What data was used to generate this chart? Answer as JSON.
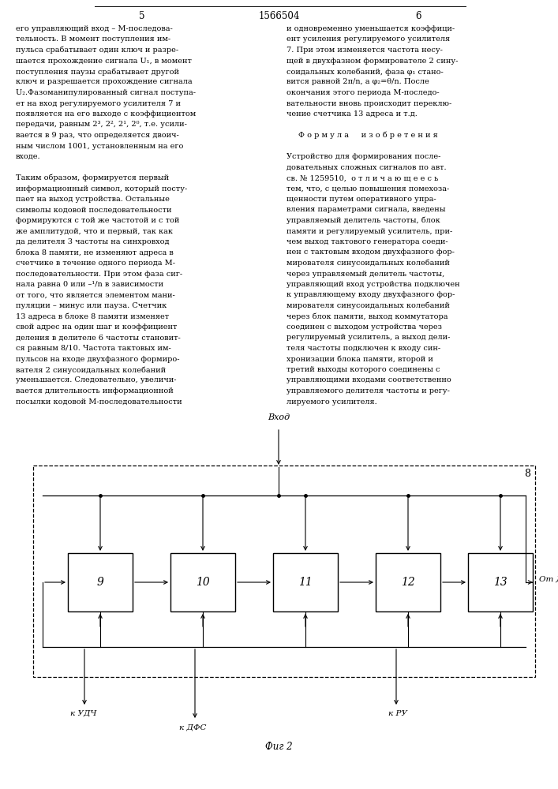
{
  "page_width": 7.07,
  "page_height": 10.0,
  "bg_color": "#ffffff",
  "header": {
    "left_num": "5",
    "center_num": "1566504",
    "right_num": "6",
    "font_size": 8.5
  },
  "text_font_size": 7.0,
  "diagram_font_size": 8.0,
  "left_col_lines": [
    "его управляющий вход – M-последова-",
    "тельность. В момент поступления им-",
    "пульса срабатывает один ключ и разре-",
    "шается прохождение сигнала U₁, в момент",
    "поступления паузы срабатывает другой",
    "ключ и разрешается прохождение сигнала",
    "U₂.Фазоманипулированный сигнал поступа-",
    "ет на вход регулируемого усилителя 7 и",
    "появляется на его выходе с коэффициентом",
    "передачи, равным 2³, 2², 2¹, 2⁰, т.е. усили-",
    "вается в 9 раз, что определяется двоич-",
    "ным числом 1001, установленным на его",
    "входе.",
    " ",
    "Таким образом, формируется первый",
    "информационный символ, который посту-",
    "пает на выход устройства. Остальные",
    "символы кодовой последовательности",
    "формируются с той же частотой и с той",
    "же амплитудой, что и первый, так как",
    "да делителя 3 частоты на синхровход",
    "блока 8 памяти, не изменяют адреса в",
    "счетчике в течение одного периода M-",
    "последовательности. При этом фаза сиг-",
    "нала равна 0 или –¹/n в зависимости",
    "от того, что является элементом мани-",
    "пуляции – минус или пауза. Счетчик",
    "13 адреса в блоке 8 памяти изменяет",
    "свой адрес на один шаг и коэффициент",
    "деления в делителе 6 частоты становит-",
    "ся равным 8/10. Частота тактовых им-",
    "пульсов на входе двухфазного формиро-",
    "вателя 2 синусоидальных колебаний",
    "уменьшается. Следовательно, увеличи-",
    "вается длительность информационной",
    "посылки кодовой M-последовательности"
  ],
  "right_col_lines": [
    "и одновременно уменьшается коэффици-",
    "ент усиления регулируемого усилителя",
    "7. При этом изменяется частота несу-",
    "щей в двухфазном формирователе 2 сину-",
    "соидальных колебаний, фаза φ₁ стано-",
    "вится равной 2π/n, а φ₂=θ/n. После",
    "окончания этого периода M-последо-",
    "вательности вновь происходит переклю-",
    "чение счетчика 13 адреса и т.д.",
    " ",
    "Ф о р м у л а     и з о б р е т е н и я",
    " ",
    "Устройство для формирования после-",
    "довательных сложных сигналов по авт.",
    "св. № 1259510,  о т л и ч а ю щ е е с ь",
    "тем, что, с целью повышения помехоза-",
    "щенности путем оперативного упра-",
    "вления параметрами сигнала, введены",
    "управляемый делитель частоты, блок",
    "памяти и регулируемый усилитель, при-",
    "чем выход тактового генератора соеди-",
    "нен с тактовым входом двухфазного фор-",
    "мирователя синусоидальных колебаний",
    "через управляемый делитель частоты,",
    "управляющий вход устройства подключен",
    "к управляющему входу двухфазного фор-",
    "мирователя синусоидальных колебаний",
    "через блок памяти, выход коммутатора",
    "соединен с выходом устройства через",
    "регулируемый усилитель, а выход дели-",
    "теля частоты подключен к входу син-",
    "хронизации блока памяти, второй и",
    "третий выходы которого соединены с",
    "управляющими входами соответственно",
    "управляемого делителя частоты и регу-",
    "лируемого усилителя."
  ]
}
